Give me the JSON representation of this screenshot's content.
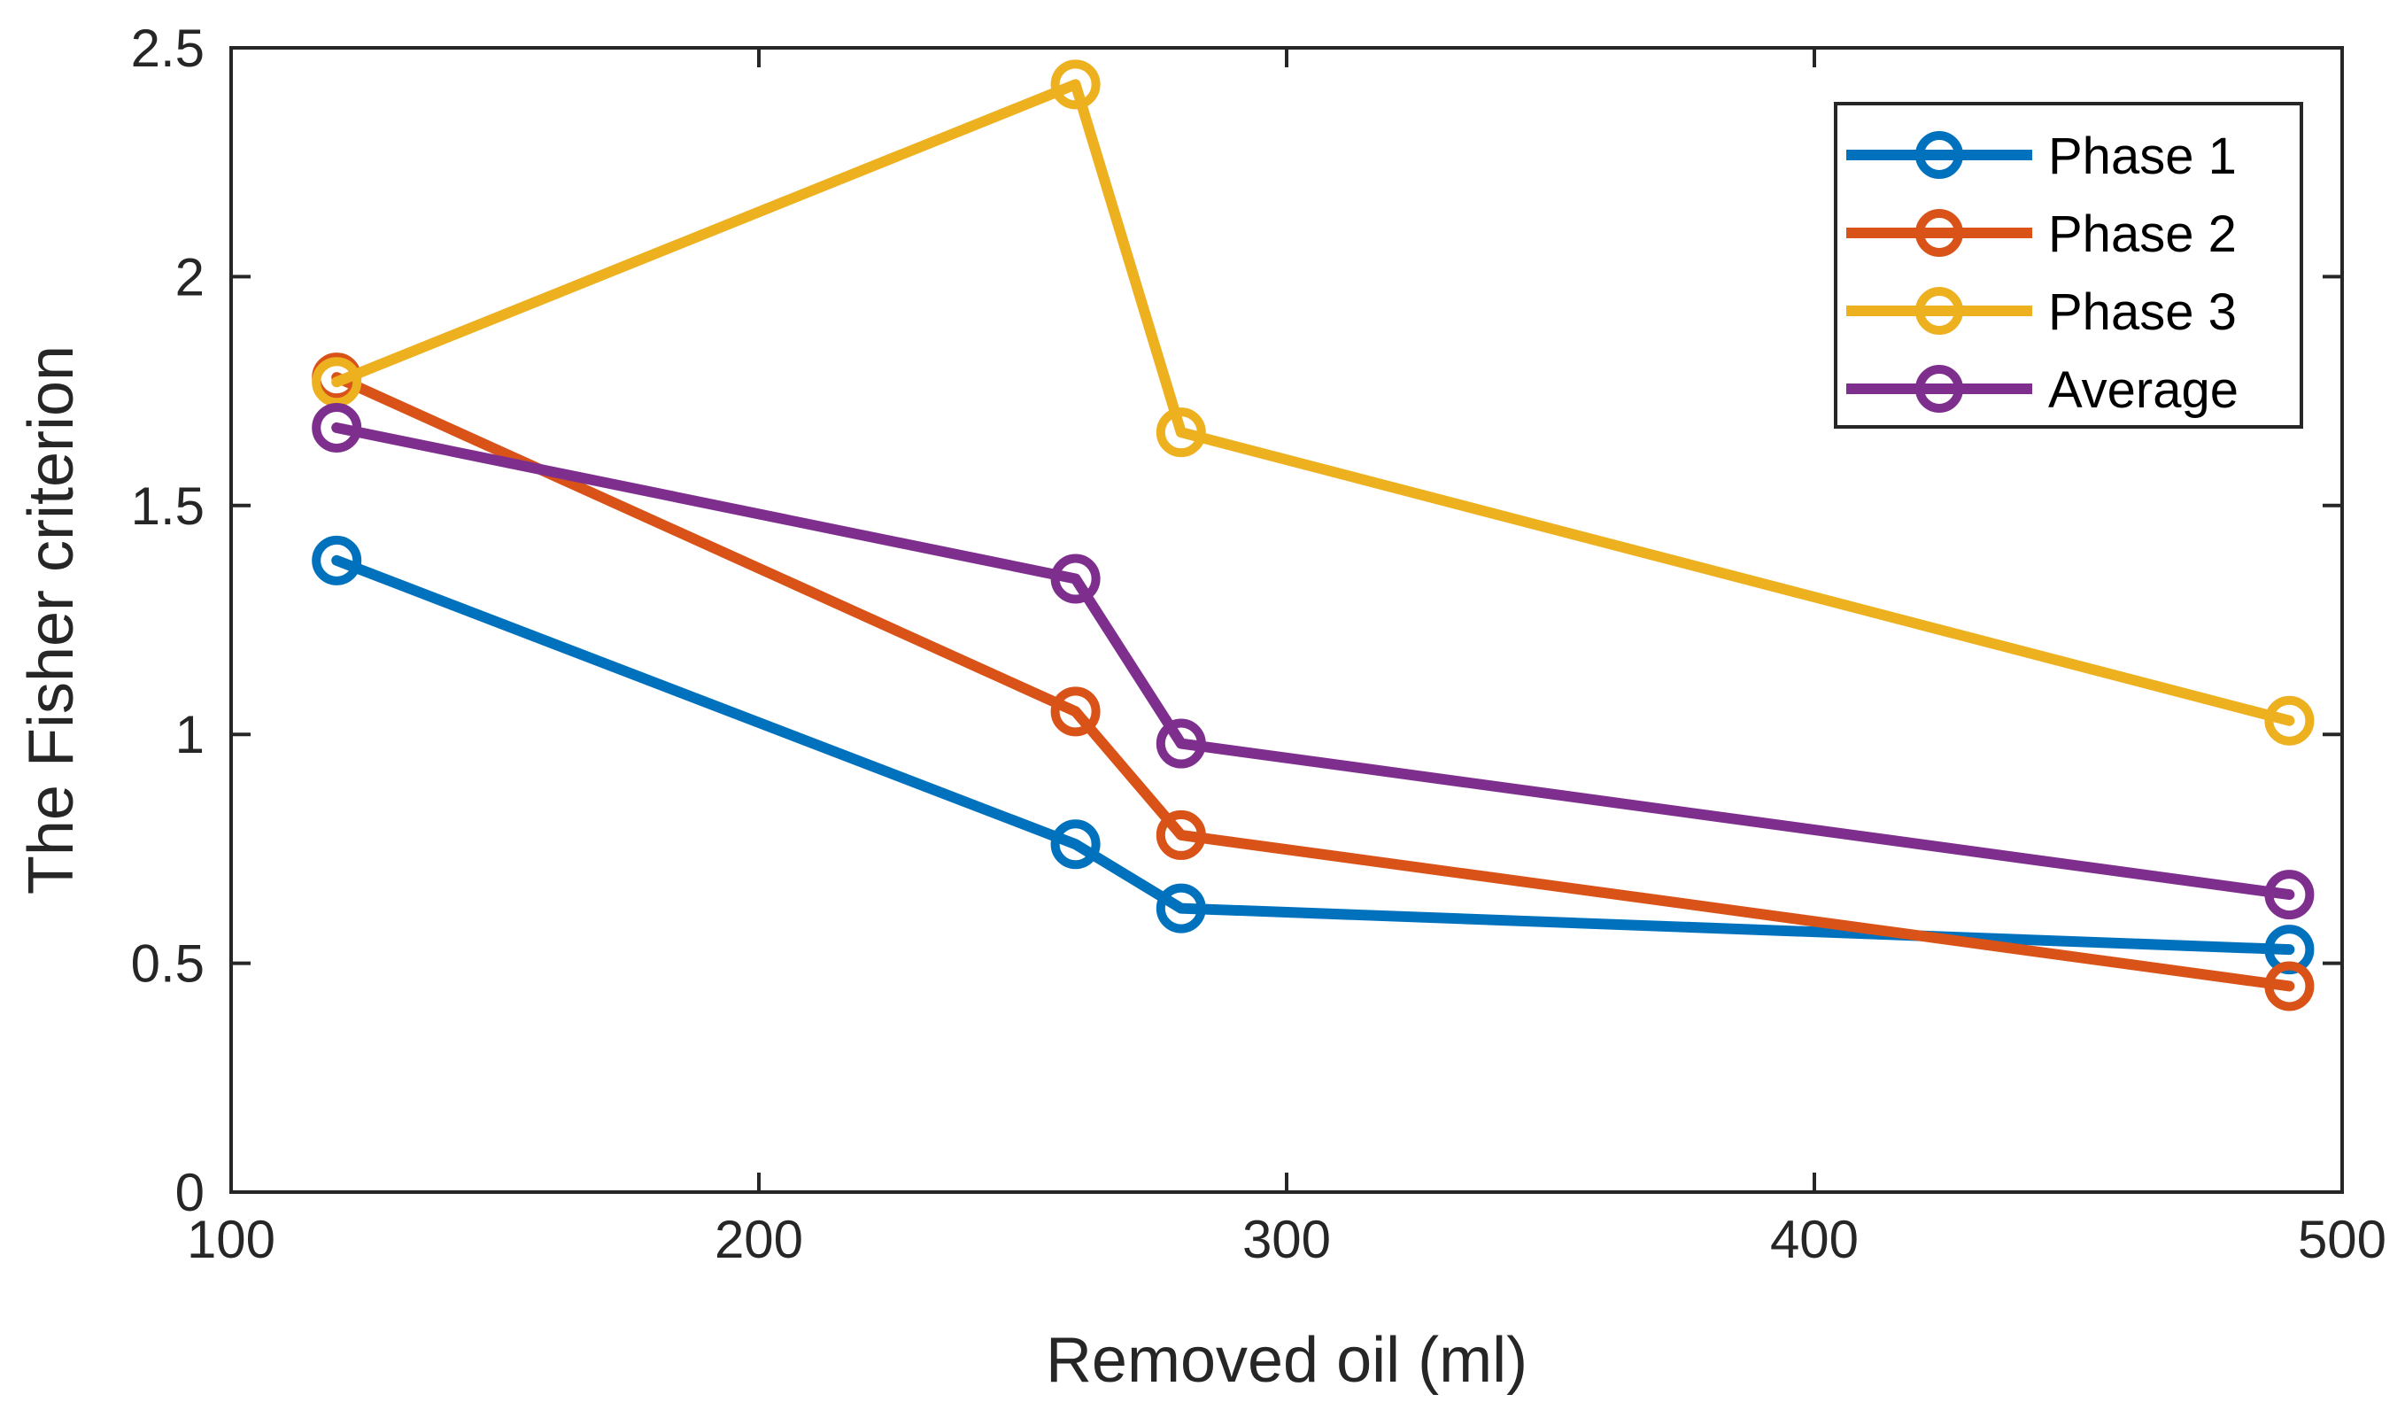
{
  "chart_data": {
    "type": "line",
    "title": "",
    "xlabel": "Removed oil (ml)",
    "ylabel": "The Fisher criterion",
    "xlim": [
      100,
      500
    ],
    "ylim": [
      0,
      2.5
    ],
    "xticks": [
      100,
      200,
      300,
      400,
      500
    ],
    "xtick_labels": [
      "100",
      "200",
      "300",
      "400",
      "500"
    ],
    "yticks": [
      0,
      0.5,
      1,
      1.5,
      2,
      2.5
    ],
    "ytick_labels": [
      "0",
      "0.5",
      "1",
      "1.5",
      "2",
      "2.5"
    ],
    "grid": false,
    "legend_position": "top-right",
    "x": [
      120,
      260,
      280,
      490
    ],
    "series": [
      {
        "name": "Phase 1",
        "color": "#0072BD",
        "values": [
          1.38,
          0.76,
          0.62,
          0.53
        ]
      },
      {
        "name": "Phase 2",
        "color": "#D95319",
        "values": [
          1.78,
          1.05,
          0.78,
          0.45
        ]
      },
      {
        "name": "Phase 3",
        "color": "#EDB120",
        "values": [
          1.77,
          2.42,
          1.66,
          1.03
        ]
      },
      {
        "name": "Average",
        "color": "#7E2F8E",
        "values": [
          1.67,
          1.34,
          0.98,
          0.65
        ]
      }
    ]
  }
}
